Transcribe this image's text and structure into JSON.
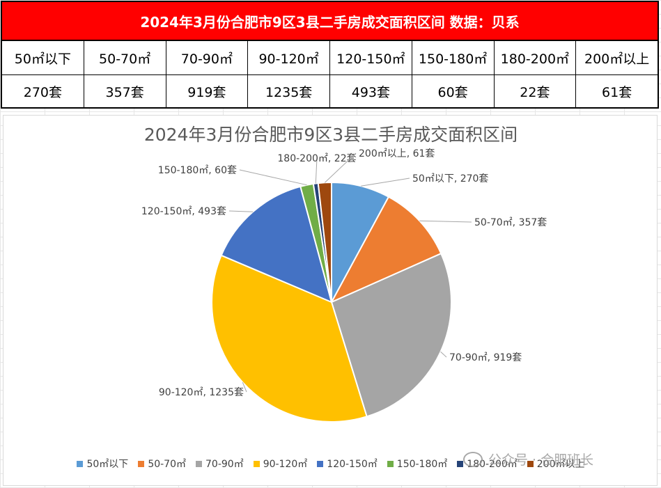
{
  "table": {
    "title": "2024年3月份合肥市9区3县二手房成交面积区间 数据：贝系",
    "headers": [
      "50㎡以下",
      "50-70㎡",
      "70-90㎡",
      "90-120㎡",
      "120-150㎡",
      "150-180㎡",
      "180-200㎡",
      "200㎡以上"
    ],
    "values": [
      "270套",
      "357套",
      "919套",
      "1235套",
      "493套",
      "60套",
      "22套",
      "61套"
    ]
  },
  "chart_data": {
    "type": "pie",
    "title": "2024年3月份合肥市9区3县二手房成交面积区间",
    "categories": [
      "50㎡以下",
      "50-70㎡",
      "70-90㎡",
      "90-120㎡",
      "120-150㎡",
      "150-180㎡",
      "180-200㎡",
      "200㎡以上"
    ],
    "values": [
      270,
      357,
      919,
      1235,
      493,
      60,
      22,
      61
    ],
    "unit": "套",
    "data_labels": [
      "50㎡以下, 270套",
      "50-70㎡, 357套",
      "70-90㎡, 919套",
      "90-120㎡, 1235套",
      "120-150㎡, 493套",
      "150-180㎡, 60套",
      "180-200㎡, 22套",
      "200㎡以上, 61套"
    ],
    "colors": [
      "#5b9bd5",
      "#ed7d31",
      "#a5a5a5",
      "#ffc000",
      "#4472c4",
      "#70ad47",
      "#264478",
      "#9e480e"
    ],
    "legend_position": "bottom"
  },
  "watermark": "公众号 · 合肥班长"
}
